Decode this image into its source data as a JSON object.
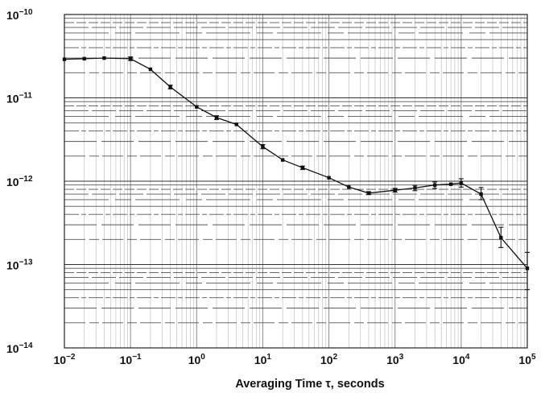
{
  "chart_data": {
    "type": "line",
    "xlabel": "Averaging Time τ, seconds",
    "ylabel": "",
    "x_scale": "log",
    "y_scale": "log",
    "xlim": [
      0.01,
      100000
    ],
    "ylim": [
      1e-14,
      1e-10
    ],
    "x_ticks": [
      {
        "value": 0.01,
        "base": "10",
        "exp": "−2"
      },
      {
        "value": 0.1,
        "base": "10",
        "exp": "−1"
      },
      {
        "value": 1,
        "base": "10",
        "exp": "0"
      },
      {
        "value": 10,
        "base": "10",
        "exp": "1"
      },
      {
        "value": 100,
        "base": "10",
        "exp": "2"
      },
      {
        "value": 1000,
        "base": "10",
        "exp": "3"
      },
      {
        "value": 10000,
        "base": "10",
        "exp": "4"
      },
      {
        "value": 100000,
        "base": "10",
        "exp": "5"
      }
    ],
    "y_ticks": [
      {
        "value": 1e-10,
        "base": "10",
        "exp": "−10"
      },
      {
        "value": 1e-11,
        "base": "10",
        "exp": "−11"
      },
      {
        "value": 1e-12,
        "base": "10",
        "exp": "−12"
      },
      {
        "value": 1e-13,
        "base": "10",
        "exp": "−13"
      },
      {
        "value": 1e-14,
        "base": "10",
        "exp": "−14"
      }
    ],
    "grid": true,
    "series": [
      {
        "color": "#111111",
        "points": [
          {
            "x": 0.01,
            "y": 2.9e-11
          },
          {
            "x": 0.02,
            "y": 2.95e-11
          },
          {
            "x": 0.04,
            "y": 3e-11
          },
          {
            "x": 0.1,
            "y": 2.95e-11,
            "err": [
              2.8e-11,
              3.1e-11
            ]
          },
          {
            "x": 0.2,
            "y": 2.2e-11
          },
          {
            "x": 0.4,
            "y": 1.35e-11,
            "err": [
              1.28e-11,
              1.42e-11
            ]
          },
          {
            "x": 1,
            "y": 7.8e-12
          },
          {
            "x": 2,
            "y": 5.8e-12,
            "err": [
              5.5e-12,
              6.1e-12
            ]
          },
          {
            "x": 4,
            "y": 4.8e-12
          },
          {
            "x": 10,
            "y": 2.6e-12,
            "err": [
              2.45e-12,
              2.75e-12
            ]
          },
          {
            "x": 20,
            "y": 1.8e-12
          },
          {
            "x": 40,
            "y": 1.45e-12,
            "err": [
              1.38e-12,
              1.52e-12
            ]
          },
          {
            "x": 100,
            "y": 1.1e-12
          },
          {
            "x": 200,
            "y": 8.5e-13
          },
          {
            "x": 400,
            "y": 7.2e-13,
            "err": [
              6.9e-13,
              7.5e-13
            ]
          },
          {
            "x": 1000,
            "y": 7.8e-13,
            "err": [
              7.4e-13,
              8.2e-13
            ]
          },
          {
            "x": 2000,
            "y": 8.3e-13,
            "err": [
              7.7e-13,
              8.9e-13
            ]
          },
          {
            "x": 4000,
            "y": 9e-13,
            "err": [
              8.2e-13,
              9.8e-13
            ]
          },
          {
            "x": 7000,
            "y": 9.2e-13
          },
          {
            "x": 10000,
            "y": 9.5e-13,
            "err": [
              8.5e-13,
              1.07e-12
            ]
          },
          {
            "x": 20000,
            "y": 7e-13,
            "err": [
              6e-13,
              8.4e-13
            ]
          },
          {
            "x": 40000,
            "y": 2.1e-13,
            "err": [
              1.6e-13,
              2.8e-13
            ]
          },
          {
            "x": 100000,
            "y": 9e-14,
            "err": [
              5e-14,
              1.4e-13
            ]
          }
        ]
      }
    ]
  }
}
